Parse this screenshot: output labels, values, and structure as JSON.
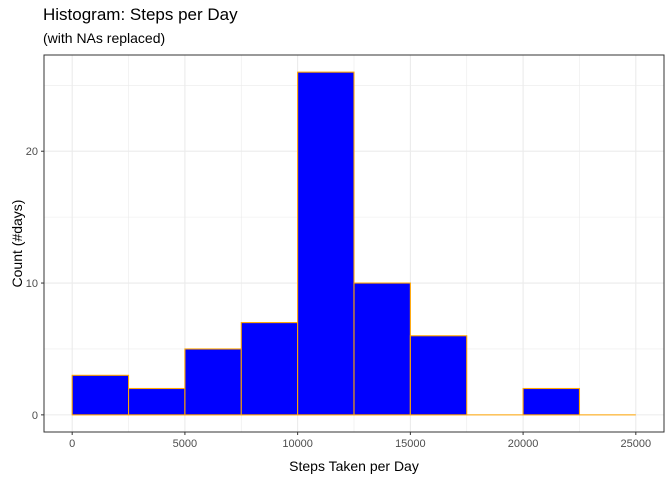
{
  "chart_data": {
    "type": "bar",
    "title": "Histogram: Steps per Day",
    "subtitle": "(with NAs replaced)",
    "xlabel": "Steps Taken per Day",
    "ylabel": "Count (#days)",
    "bins": [
      {
        "x0": 0,
        "x1": 2500,
        "count": 3
      },
      {
        "x0": 2500,
        "x1": 5000,
        "count": 2
      },
      {
        "x0": 5000,
        "x1": 7500,
        "count": 5
      },
      {
        "x0": 7500,
        "x1": 10000,
        "count": 7
      },
      {
        "x0": 10000,
        "x1": 12500,
        "count": 26
      },
      {
        "x0": 12500,
        "x1": 15000,
        "count": 10
      },
      {
        "x0": 15000,
        "x1": 17500,
        "count": 6
      },
      {
        "x0": 17500,
        "x1": 20000,
        "count": 0
      },
      {
        "x0": 20000,
        "x1": 22500,
        "count": 2
      },
      {
        "x0": 22500,
        "x1": 25000,
        "count": 0
      }
    ],
    "xticks": [
      "0",
      "5000",
      "10000",
      "15000",
      "20000",
      "25000"
    ],
    "yticks": [
      "0",
      "10",
      "20"
    ],
    "xlim": [
      -1250,
      26250
    ],
    "ylim": [
      -1.3,
      27.3
    ],
    "grid": true,
    "colors": {
      "fill": "#0000FF",
      "outline": "#FFA500",
      "panel_border": "#333333",
      "grid": "#EBEBEB"
    }
  }
}
